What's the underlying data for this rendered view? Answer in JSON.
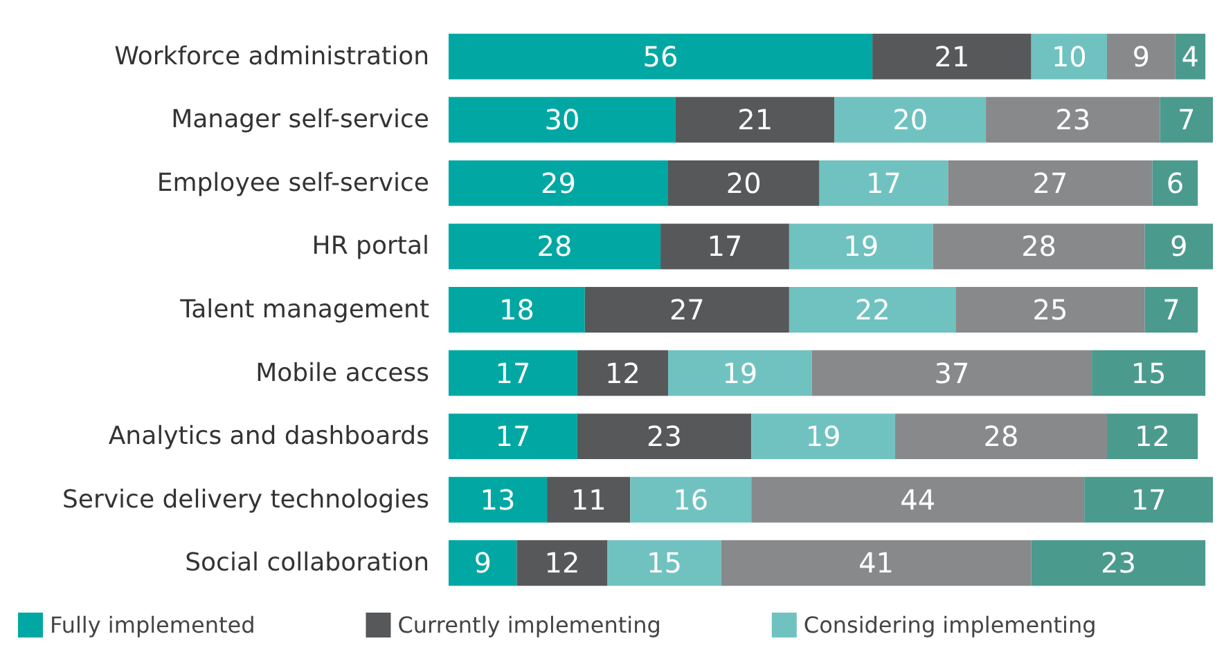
{
  "chart_data": {
    "type": "bar",
    "orientation": "horizontal",
    "stacked": true,
    "data_labels": true,
    "legend": "bottom",
    "categories": [
      "Workforce administration",
      "Manager self-service",
      "Employee self-service",
      "HR portal",
      "Talent management",
      "Mobile access",
      "Analytics and dashboards",
      "Service delivery technologies",
      "Social collaboration"
    ],
    "series": [
      {
        "name": "Fully implemented",
        "color": "#00a7a3",
        "values": [
          56,
          30,
          29,
          28,
          18,
          17,
          17,
          13,
          9
        ]
      },
      {
        "name": "Currently implementing",
        "color": "#57585a",
        "values": [
          21,
          21,
          20,
          17,
          27,
          12,
          23,
          11,
          12
        ]
      },
      {
        "name": "Considering implementing",
        "color": "#6fc2bf",
        "values": [
          10,
          20,
          17,
          19,
          22,
          19,
          19,
          16,
          15
        ]
      },
      {
        "color": "#87898b",
        "values": [
          9,
          23,
          27,
          28,
          25,
          37,
          28,
          44,
          41
        ]
      },
      {
        "color": "#4b9a8e",
        "values": [
          4,
          7,
          6,
          9,
          7,
          15,
          12,
          17,
          23
        ]
      }
    ]
  }
}
